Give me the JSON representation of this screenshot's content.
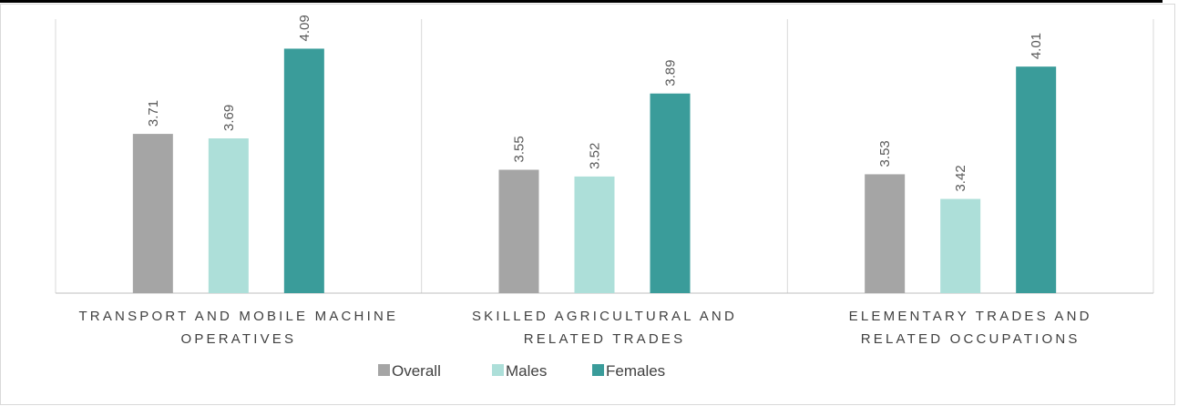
{
  "chart_data": {
    "type": "bar",
    "categories": [
      "TRANSPORT AND MOBILE MACHINE OPERATIVES",
      "SKILLED AGRICULTURAL AND RELATED TRADES",
      "ELEMENTARY TRADES AND RELATED OCCUPATIONS"
    ],
    "category_lines": [
      [
        "TRANSPORT AND MOBILE MACHINE",
        "OPERATIVES"
      ],
      [
        "SKILLED AGRICULTURAL AND",
        "RELATED TRADES"
      ],
      [
        "ELEMENTARY TRADES AND",
        "RELATED OCCUPATIONS"
      ]
    ],
    "series": [
      {
        "name": "Overall",
        "values": [
          3.71,
          3.55,
          3.53
        ],
        "color": "#a5a5a5"
      },
      {
        "name": "Males",
        "values": [
          3.69,
          3.52,
          3.42
        ],
        "color": "#addfd9"
      },
      {
        "name": "Females",
        "values": [
          4.09,
          3.89,
          4.01
        ],
        "color": "#3a9c9a"
      }
    ],
    "data_labels": [
      [
        "3.71",
        "3.55",
        "3.53"
      ],
      [
        "3.69",
        "3.52",
        "3.42"
      ],
      [
        "4.09",
        "3.89",
        "4.01"
      ]
    ],
    "ylim": [
      3.0,
      4.1
    ],
    "legend_position": "bottom",
    "grid": false,
    "title": "",
    "xlabel": "",
    "ylabel": ""
  }
}
